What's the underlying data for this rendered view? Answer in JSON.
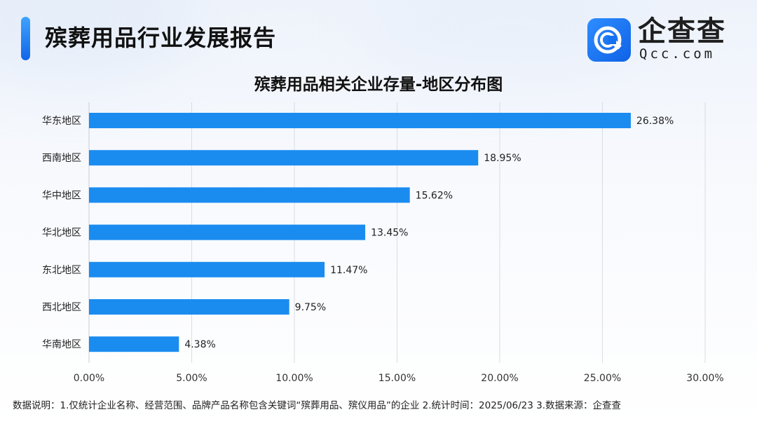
{
  "report_title": "殡葬用品行业发展报告",
  "brand": {
    "name": "企查查",
    "domain": "Qcc.com",
    "logo_icon": "qcc-logo-icon",
    "primary_color": "#1677ff"
  },
  "chart_data": {
    "type": "bar",
    "orientation": "horizontal",
    "title": "殡葬用品相关企业存量-地区分布图",
    "categories": [
      "华东地区",
      "西南地区",
      "华中地区",
      "华北地区",
      "东北地区",
      "西北地区",
      "华南地区"
    ],
    "values": [
      26.38,
      18.95,
      15.62,
      13.45,
      11.47,
      9.75,
      4.38
    ],
    "value_labels": [
      "26.38%",
      "18.95%",
      "15.62%",
      "13.45%",
      "11.47%",
      "9.75%",
      "4.38%"
    ],
    "xlim": [
      0,
      30
    ],
    "x_ticks": [
      0,
      5,
      10,
      15,
      20,
      25,
      30
    ],
    "x_tick_labels": [
      "0.00%",
      "5.00%",
      "10.00%",
      "15.00%",
      "20.00%",
      "25.00%",
      "30.00%"
    ],
    "xlabel": "",
    "ylabel": "",
    "grid": true,
    "bar_color": "#1a8cf0",
    "legend": false
  },
  "footnote": "数据说明：1.仅统计企业名称、经营范围、品牌产品名称包含关键词“殡葬用品、殡仪用品”的企业    2.统计时间：2025/06/23    3.数据来源：企查查"
}
